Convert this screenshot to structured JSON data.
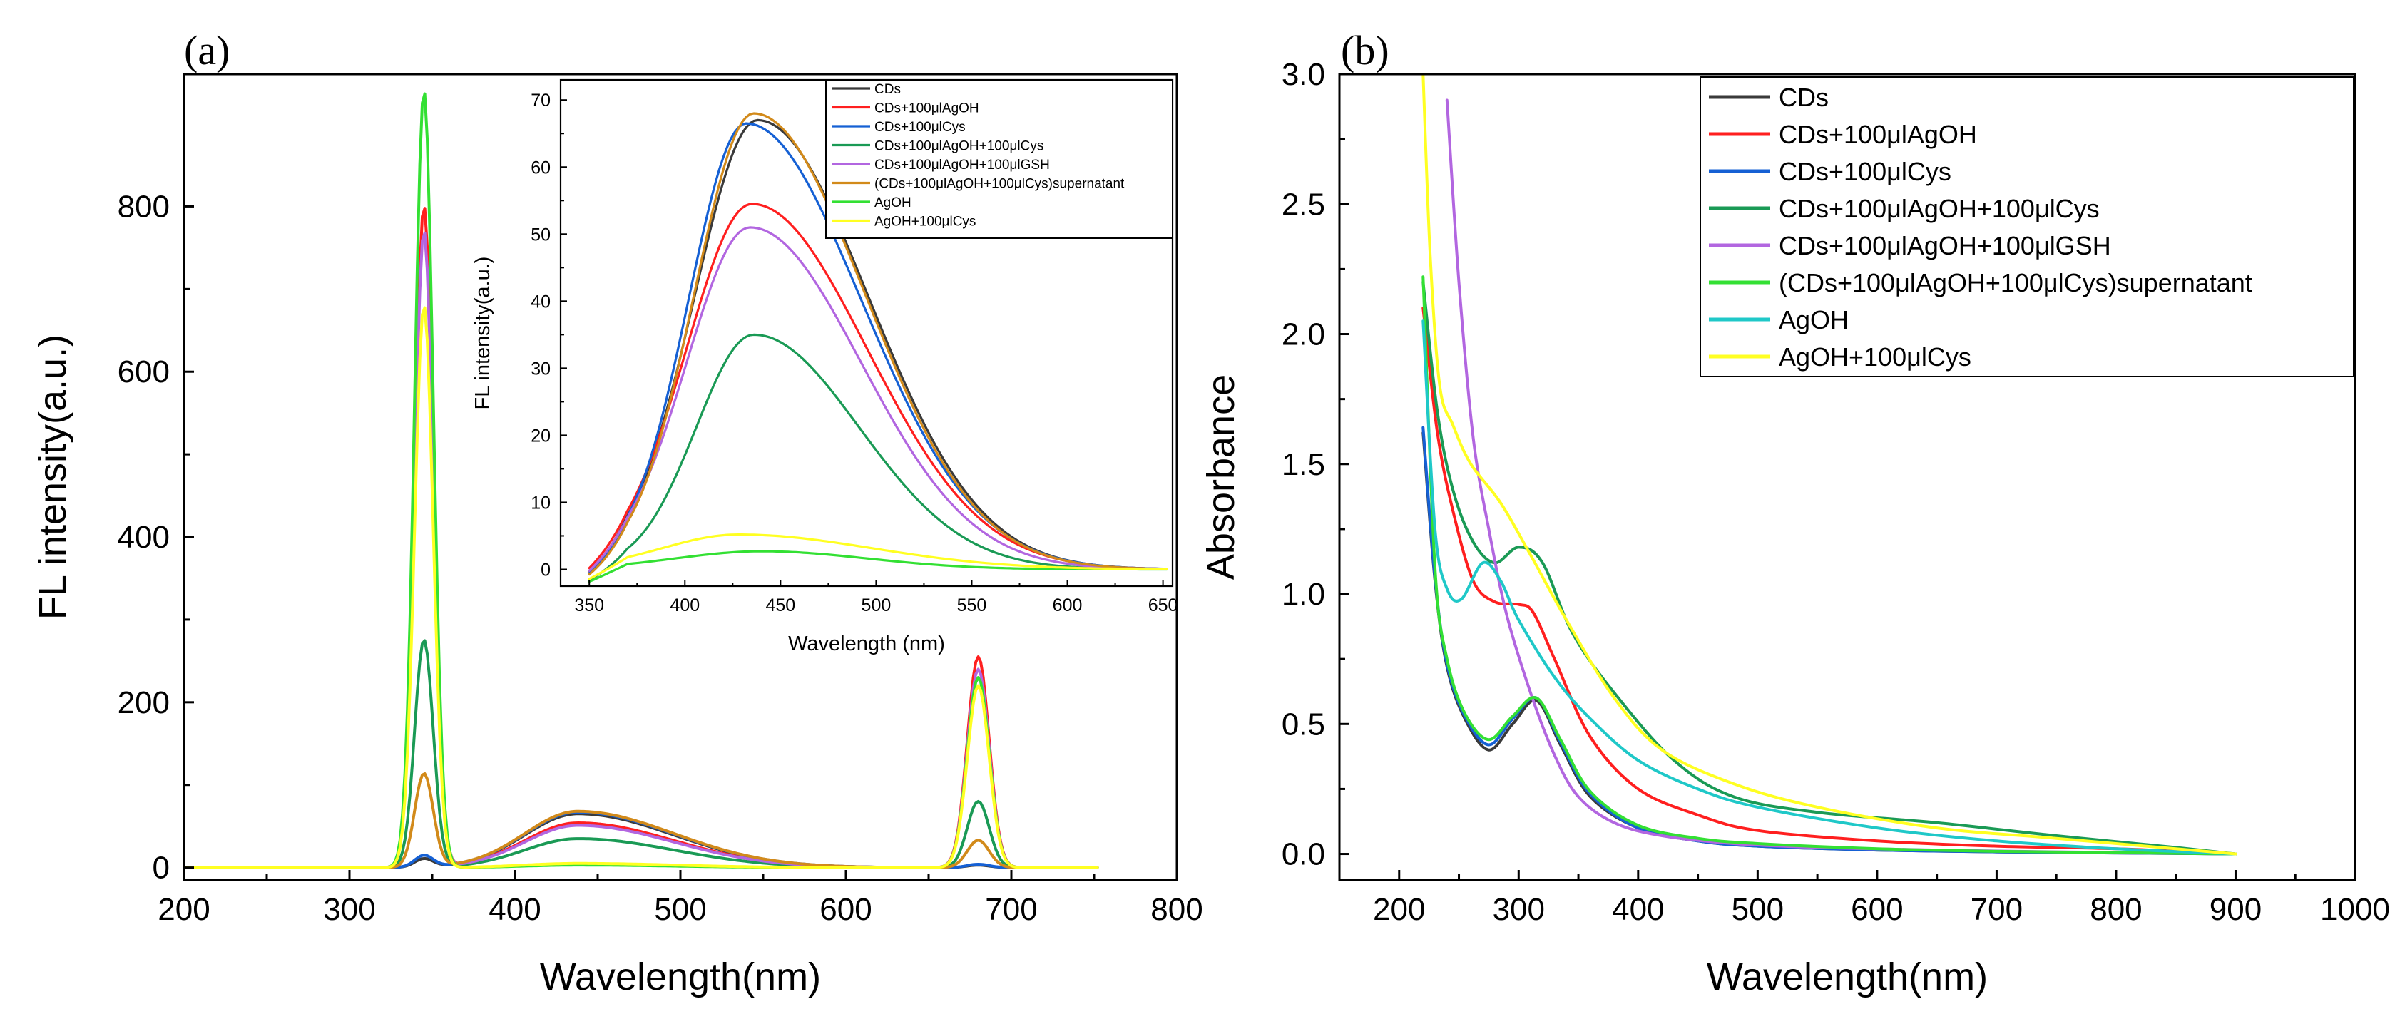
{
  "colors": {
    "CDs": "#3a3a3a",
    "AgOH_added": "#ff1f1f",
    "Cys_added": "#1560d4",
    "AgOH_Cys": "#1a9a55",
    "AgOH_GSH": "#b266e0",
    "supernatant_a": "#d28a1a",
    "supernatant_b": "#33e033",
    "AgOH_a": "#33e033",
    "AgOH_b": "#1fc8c8",
    "AgOH_Cys_only": "#ffff22"
  },
  "chart_data": [
    {
      "id": "a",
      "panel_label": "(a)",
      "type": "line",
      "xlabel": "Wavelength(nm)",
      "ylabel": "FL intensity(a.u.)",
      "xlim": [
        200,
        800
      ],
      "ylim": [
        -15,
        960
      ],
      "xticks": [
        200,
        300,
        400,
        500,
        600,
        700,
        800
      ],
      "yticks": [
        0,
        200,
        400,
        600,
        800
      ],
      "x_tick_labels": [
        "200",
        "300",
        "400",
        "500",
        "600",
        "700",
        "800"
      ],
      "y_tick_labels": [
        "0",
        "200",
        "400",
        "600",
        "800"
      ],
      "series": [
        {
          "name": "CDs",
          "color_key": "CDs",
          "peak_345": 10,
          "peak_680": 3,
          "broad_440": 65
        },
        {
          "name": "CDs+100μlAgOH",
          "color_key": "AgOH_added",
          "peak_345": 800,
          "peak_680": 255,
          "broad_440": 54
        },
        {
          "name": "CDs+100μlCys",
          "color_key": "Cys_added",
          "peak_345": 14,
          "peak_680": 4,
          "broad_440": 67
        },
        {
          "name": "CDs+100μlAgOH+100μlCys",
          "color_key": "AgOH_Cys",
          "peak_345": 275,
          "peak_680": 80,
          "broad_440": 35
        },
        {
          "name": "CDs+100μlAgOH+100μlGSH",
          "color_key": "AgOH_GSH",
          "peak_345": 770,
          "peak_680": 240,
          "broad_440": 51
        },
        {
          "name": "(CDs+100μlAgOH+100μlCys)supernatant",
          "color_key": "supernatant_a",
          "peak_345": 113,
          "peak_680": 33,
          "broad_440": 68
        },
        {
          "name": "AgOH",
          "color_key": "AgOH_a",
          "peak_345": 940,
          "peak_680": 230,
          "broad_440": 3
        },
        {
          "name": "AgOH+100μlCys",
          "color_key": "AgOH_Cys_only",
          "peak_345": 680,
          "peak_680": 220,
          "broad_440": 5
        }
      ],
      "inset": {
        "xlabel": "Wavelength (nm)",
        "ylabel": "FL intensity(a.u.)",
        "xlim": [
          335,
          655
        ],
        "ylim": [
          -2.5,
          73
        ],
        "xticks": [
          350,
          400,
          450,
          500,
          550,
          600,
          650
        ],
        "yticks": [
          0,
          10,
          20,
          30,
          40,
          50,
          60,
          70
        ],
        "x_tick_labels": [
          "350",
          "400",
          "450",
          "500",
          "550",
          "600",
          "650"
        ],
        "y_tick_labels": [
          "0",
          "10",
          "20",
          "30",
          "40",
          "50",
          "60",
          "70"
        ],
        "series": [
          {
            "name": "CDs",
            "color_key": "CDs",
            "peak": 67,
            "center": 438,
            "sigma_left": 33,
            "sigma_right": 58
          },
          {
            "name": "CDs+100μlAgOH",
            "color_key": "AgOH_added",
            "peak": 54.5,
            "center": 435,
            "sigma_left": 34,
            "sigma_right": 60
          },
          {
            "name": "CDs+100μlCys",
            "color_key": "Cys_added",
            "peak": 66.5,
            "center": 432,
            "sigma_left": 30,
            "sigma_right": 60
          },
          {
            "name": "CDs+100μlAgOH+100μlCys",
            "color_key": "AgOH_Cys",
            "peak": 35,
            "center": 436,
            "sigma_left": 30,
            "sigma_right": 55
          },
          {
            "name": "CDs+100μlAgOH+100μlGSH",
            "color_key": "AgOH_GSH",
            "peak": 51,
            "center": 434,
            "sigma_left": 33,
            "sigma_right": 58
          },
          {
            "name": "(CDs+100μlAgOH+100μlCys)supernatant",
            "color_key": "supernatant_a",
            "peak": 68,
            "center": 436,
            "sigma_left": 31,
            "sigma_right": 58
          },
          {
            "name": "AgOH",
            "color_key": "AgOH_a",
            "peak": 2.7,
            "center": 440,
            "sigma_left": 45,
            "sigma_right": 55
          },
          {
            "name": "AgOH+100μlCys",
            "color_key": "AgOH_Cys_only",
            "peak": 5.2,
            "center": 428,
            "sigma_left": 40,
            "sigma_right": 70
          }
        ]
      }
    },
    {
      "id": "b",
      "panel_label": "(b)",
      "type": "line",
      "xlabel": "Wavelength(nm)",
      "ylabel": "Absorbance",
      "xlim": [
        150,
        1000
      ],
      "ylim": [
        -0.1,
        3.0
      ],
      "xticks": [
        200,
        300,
        400,
        500,
        600,
        700,
        800,
        900,
        1000
      ],
      "yticks": [
        0.0,
        0.5,
        1.0,
        1.5,
        2.0,
        2.5,
        3.0
      ],
      "x_tick_labels": [
        "200",
        "300",
        "400",
        "500",
        "600",
        "700",
        "800",
        "900",
        "1000"
      ],
      "y_tick_labels": [
        "0.0",
        "0.5",
        "1.0",
        "1.5",
        "2.0",
        "2.5",
        "3.0"
      ],
      "series": [
        {
          "name": "CDs",
          "color_key": "CDs",
          "x": [
            220,
            230,
            240,
            255,
            275,
            295,
            315,
            335,
            360,
            400,
            450,
            500,
            600,
            700,
            800,
            900
          ],
          "y": [
            1.62,
            1.05,
            0.72,
            0.52,
            0.4,
            0.5,
            0.59,
            0.42,
            0.22,
            0.1,
            0.05,
            0.03,
            0.015,
            0.008,
            0.004,
            0.0
          ]
        },
        {
          "name": "CDs+100μlAgOH",
          "color_key": "AgOH_added",
          "x": [
            220,
            232,
            245,
            262,
            280,
            300,
            312,
            330,
            360,
            400,
            450,
            500,
            600,
            700,
            800,
            900
          ],
          "y": [
            2.1,
            1.62,
            1.32,
            1.05,
            0.97,
            0.96,
            0.93,
            0.75,
            0.45,
            0.25,
            0.15,
            0.09,
            0.05,
            0.03,
            0.02,
            0.0
          ]
        },
        {
          "name": "CDs+100μlCys",
          "color_key": "Cys_added",
          "x": [
            220,
            230,
            240,
            255,
            275,
            295,
            315,
            335,
            360,
            400,
            450,
            500,
            600,
            700,
            800,
            900
          ],
          "y": [
            1.64,
            1.06,
            0.73,
            0.53,
            0.42,
            0.52,
            0.6,
            0.43,
            0.23,
            0.1,
            0.05,
            0.03,
            0.015,
            0.008,
            0.004,
            0.0
          ]
        },
        {
          "name": "CDs+100μlAgOH+100μlCys",
          "color_key": "AgOH_Cys",
          "x": [
            220,
            232,
            245,
            262,
            280,
            300,
            320,
            345,
            380,
            430,
            480,
            550,
            650,
            750,
            850,
            900
          ],
          "y": [
            2.2,
            1.7,
            1.4,
            1.2,
            1.12,
            1.18,
            1.12,
            0.85,
            0.62,
            0.36,
            0.22,
            0.16,
            0.12,
            0.07,
            0.025,
            0.0
          ]
        },
        {
          "name": "CDs+100μlAgOH+100μlGSH",
          "color_key": "AgOH_GSH",
          "x": [
            240,
            250,
            262,
            275,
            290,
            310,
            330,
            350,
            380,
            420,
            480,
            550,
            650,
            750,
            850,
            900
          ],
          "y": [
            2.9,
            2.2,
            1.6,
            1.25,
            0.92,
            0.62,
            0.38,
            0.22,
            0.12,
            0.07,
            0.04,
            0.025,
            0.015,
            0.008,
            0.004,
            0.0
          ]
        },
        {
          "name": "(CDs+100μlAgOH+100μlCys)supernatant",
          "color_key": "supernatant_b",
          "x": [
            220,
            230,
            240,
            255,
            275,
            295,
            315,
            335,
            360,
            400,
            450,
            500,
            600,
            700,
            800,
            900
          ],
          "y": [
            2.22,
            1.1,
            0.75,
            0.54,
            0.44,
            0.53,
            0.6,
            0.44,
            0.24,
            0.11,
            0.06,
            0.04,
            0.02,
            0.01,
            0.005,
            0.0
          ]
        },
        {
          "name": "AgOH",
          "color_key": "AgOH_b",
          "x": [
            220,
            230,
            240,
            252,
            270,
            285,
            300,
            330,
            360,
            400,
            450,
            500,
            600,
            700,
            800,
            900
          ],
          "y": [
            2.05,
            1.25,
            1.02,
            0.98,
            1.12,
            1.05,
            0.9,
            0.68,
            0.52,
            0.36,
            0.25,
            0.18,
            0.1,
            0.05,
            0.02,
            0.0
          ]
        },
        {
          "name": "AgOH+100μlCys",
          "color_key": "AgOH_Cys_only",
          "x": [
            220,
            226,
            234,
            245,
            260,
            285,
            310,
            340,
            380,
            420,
            480,
            550,
            650,
            750,
            850,
            900
          ],
          "y": [
            3.0,
            2.3,
            1.8,
            1.65,
            1.5,
            1.35,
            1.15,
            0.9,
            0.6,
            0.4,
            0.27,
            0.18,
            0.1,
            0.06,
            0.02,
            0.0
          ]
        }
      ]
    }
  ]
}
